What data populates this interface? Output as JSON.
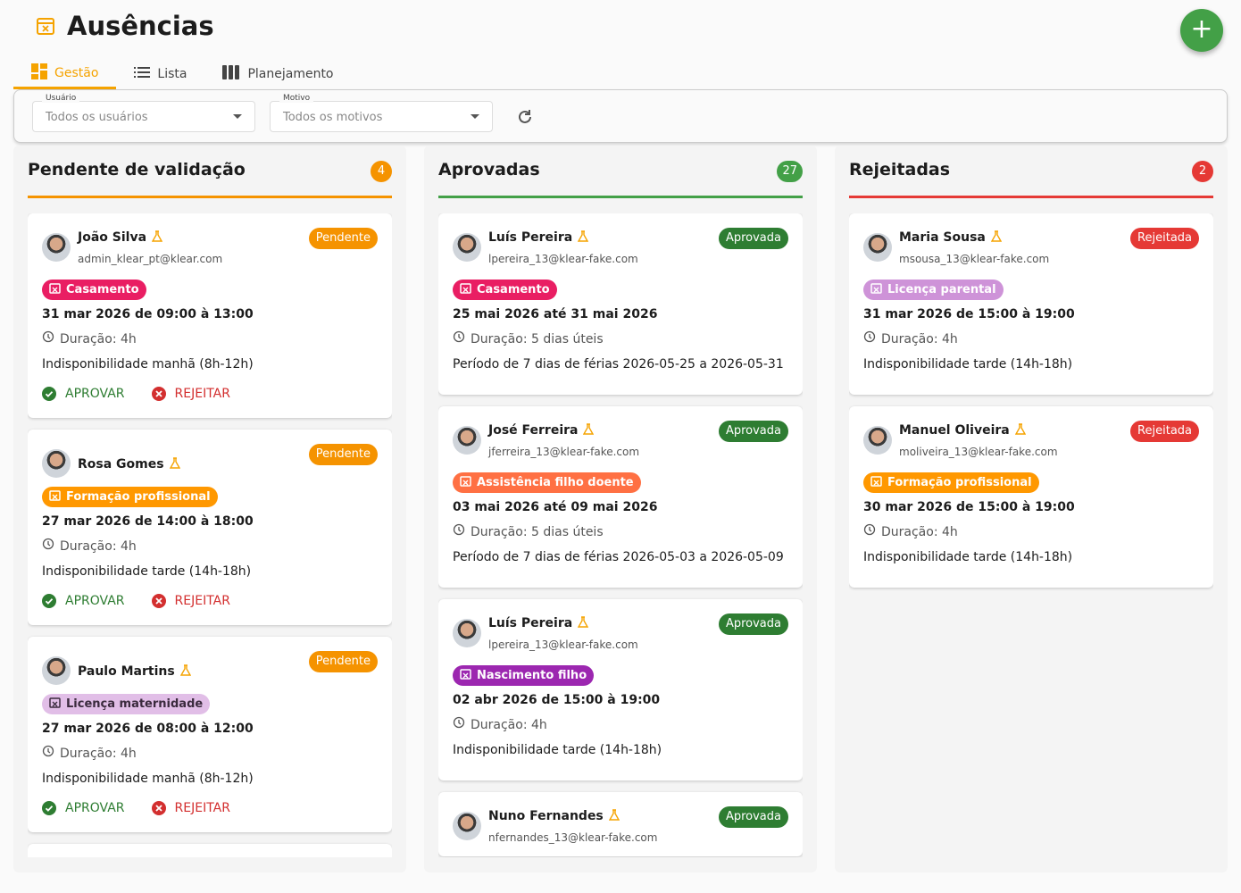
{
  "header": {
    "title": "Ausências"
  },
  "tabs": [
    "Gestão",
    "Lista",
    "Planejamento"
  ],
  "filters": [
    {
      "label": "Usuário",
      "placeholder": "Todos os usuários"
    },
    {
      "label": "Motivo",
      "placeholder": "Todos os motivos"
    }
  ],
  "actions": {
    "approve": "APROVAR",
    "reject": "REJEITAR"
  },
  "columns": [
    {
      "title": "Pendente de validação",
      "count": 4,
      "color": "#f59300",
      "cards": [
        {
          "name": "João Silva",
          "email": "admin_klear_pt@klear.com",
          "status": "Pendente",
          "reason": "Casamento",
          "reason_color": "#e91e63",
          "dates": "31 mar 2026 de 09:00 à 13:00",
          "duration": "Duração: 4h",
          "description": "Indisponibilidade manhã (8h-12h)"
        },
        {
          "name": "Rosa Gomes",
          "status": "Pendente",
          "reason": "Formação profissional",
          "reason_color": "#ff9800",
          "dates": "27 mar 2026 de 14:00 à 18:00",
          "duration": "Duração: 4h",
          "description": "Indisponibilidade tarde (14h-18h)"
        },
        {
          "name": "Paulo Martins",
          "status": "Pendente",
          "reason": "Licença maternidade",
          "reason_color": "#e1bee7",
          "reason_text": "#3a2a3d",
          "dates": "27 mar 2026 de 08:00 à 12:00",
          "duration": "Duração: 4h",
          "description": "Indisponibilidade manhã (8h-12h)"
        }
      ]
    },
    {
      "title": "Aprovadas",
      "count": 27,
      "color": "#43a047",
      "cards": [
        {
          "name": "Luís Pereira",
          "email": "lpereira_13@klear-fake.com",
          "status": "Aprovada",
          "reason": "Casamento",
          "reason_color": "#e91e63",
          "dates": "25 mai 2026 até 31 mai 2026",
          "duration": "Duração: 5 dias úteis",
          "description": "Período de 7 dias de férias 2026-05-25 a 2026-05-31"
        },
        {
          "name": "José Ferreira",
          "email": "jferreira_13@klear-fake.com",
          "status": "Aprovada",
          "reason": "Assistência filho doente",
          "reason_color": "#ff7043",
          "dates": "03 mai 2026 até 09 mai 2026",
          "duration": "Duração: 5 dias úteis",
          "description": "Período de 7 dias de férias 2026-05-03 a 2026-05-09"
        },
        {
          "name": "Luís Pereira",
          "email": "lpereira_13@klear-fake.com",
          "status": "Aprovada",
          "reason": "Nascimento filho",
          "reason_color": "#9c27b0",
          "dates": "02 abr 2026 de 15:00 à 19:00",
          "duration": "Duração: 4h",
          "description": "Indisponibilidade tarde (14h-18h)"
        },
        {
          "name": "Nuno Fernandes",
          "email": "nfernandes_13@klear-fake.com",
          "status": "Aprovada"
        }
      ]
    },
    {
      "title": "Rejeitadas",
      "count": 2,
      "color": "#e53935",
      "cards": [
        {
          "name": "Maria Sousa",
          "email": "msousa_13@klear-fake.com",
          "status": "Rejeitada",
          "reason": "Licença parental",
          "reason_color": "#ce93d8",
          "dates": "31 mar 2026 de 15:00 à 19:00",
          "duration": "Duração: 4h",
          "description": "Indisponibilidade tarde (14h-18h)"
        },
        {
          "name": "Manuel Oliveira",
          "email": "moliveira_13@klear-fake.com",
          "status": "Rejeitada",
          "reason": "Formação profissional",
          "reason_color": "#ff9800",
          "dates": "30 mar 2026 de 15:00 à 19:00",
          "duration": "Duração: 4h",
          "description": "Indisponibilidade tarde (14h-18h)"
        }
      ]
    }
  ]
}
